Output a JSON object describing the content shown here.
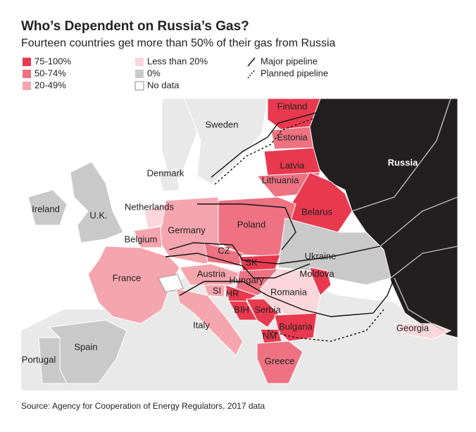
{
  "header": {
    "title": "Who’s Dependent on Russia’s Gas?",
    "subtitle": "Fourteen countries get more than 50% of their gas from Russia"
  },
  "legend": {
    "items": [
      {
        "label": "75-100%",
        "color": "#e8394f"
      },
      {
        "label": "50-74%",
        "color": "#ee7282"
      },
      {
        "label": "20-49%",
        "color": "#f5a5ae"
      },
      {
        "label": "Less than 20%",
        "color": "#fbd6da"
      },
      {
        "label": "0%",
        "color": "#c9c9c9"
      },
      {
        "label": "No data",
        "color": "#ffffff"
      }
    ],
    "pipelines": [
      {
        "label": "Major pipeline"
      },
      {
        "label": "Planned pipeline"
      }
    ]
  },
  "map": {
    "labels": [
      "Finland",
      "Sweden",
      "Estonia",
      "Russia",
      "Latvia",
      "Denmark",
      "Lithuania",
      "Ireland",
      "U.K.",
      "Netherlands",
      "Belarus",
      "Poland",
      "Germany",
      "Belgium",
      "CZ",
      "Ukraine",
      "SK",
      "France",
      "Austria",
      "Moldova",
      "Hungary",
      "SI",
      "HR",
      "Romania",
      "BIH",
      "Serbia",
      "Italy",
      "Bulgaria",
      "Georgia",
      "NM",
      "Spain",
      "Greece",
      "Portugal"
    ]
  },
  "source": "Source: Agency for Cooperation of Energy Regulators, 2017 data"
}
